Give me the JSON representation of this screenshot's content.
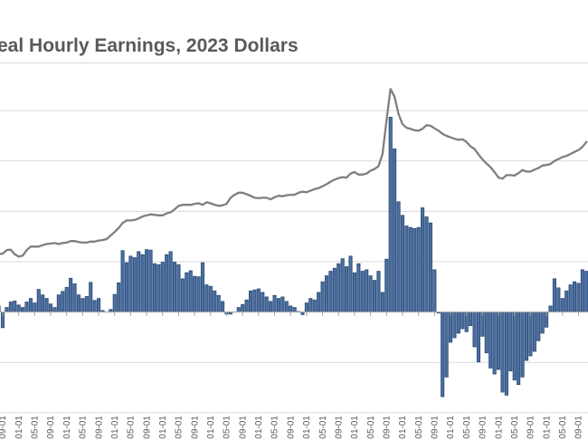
{
  "chart_data": {
    "type": "combo-line-bar",
    "title": "eal Hourly Earnings, 2023 Dollars",
    "legend": "none",
    "grid": "horizontal",
    "y_axis": {
      "tick_labels_visible": false,
      "gridline_values": [
        4,
        3,
        2,
        1,
        0,
        -1,
        -2
      ],
      "zero_baseline": true
    },
    "x_axis": {
      "tick_label_rotation_deg": -90,
      "months_per_tick": 4,
      "labels_cut_at_bottom": true,
      "tick_labels": [
        "09-01",
        "01-01",
        "05-01",
        "09-01",
        "01-01",
        "05-01",
        "09-01",
        "01-01",
        "05-01",
        "09-01",
        "01-01",
        "05-01",
        "09-01",
        "01-01",
        "05-01",
        "09-01",
        "01-01",
        "05-01",
        "09-01",
        "01-01",
        "05-01",
        "09-01",
        "01-01",
        "05-01",
        "09-01",
        "01-01",
        "05-01",
        "09-01",
        "01-01",
        "05-01",
        "09-01",
        "01-01",
        "05-01",
        "09-01",
        "01-01",
        "05-01",
        "09-01"
      ]
    },
    "series": [
      {
        "name": "real-hourly-earnings-line",
        "type": "line",
        "color": "#7F7F7F",
        "values": [
          1.15,
          1.16,
          1.23,
          1.24,
          1.15,
          1.1,
          1.12,
          1.23,
          1.3,
          1.3,
          1.3,
          1.33,
          1.35,
          1.36,
          1.37,
          1.35,
          1.37,
          1.38,
          1.41,
          1.41,
          1.39,
          1.38,
          1.38,
          1.4,
          1.4,
          1.42,
          1.43,
          1.45,
          1.52,
          1.59,
          1.67,
          1.77,
          1.82,
          1.82,
          1.83,
          1.86,
          1.9,
          1.92,
          1.94,
          1.93,
          1.92,
          1.92,
          1.96,
          1.98,
          2.04,
          2.11,
          2.13,
          2.13,
          2.13,
          2.15,
          2.16,
          2.13,
          2.18,
          2.16,
          2.13,
          2.11,
          2.12,
          2.15,
          2.27,
          2.33,
          2.37,
          2.37,
          2.34,
          2.31,
          2.27,
          2.26,
          2.27,
          2.27,
          2.24,
          2.28,
          2.31,
          2.3,
          2.32,
          2.33,
          2.33,
          2.37,
          2.39,
          2.38,
          2.41,
          2.44,
          2.46,
          2.5,
          2.54,
          2.59,
          2.63,
          2.66,
          2.68,
          2.67,
          2.75,
          2.78,
          2.73,
          2.73,
          2.75,
          2.81,
          2.84,
          2.9,
          3.14,
          3.81,
          4.43,
          4.28,
          3.93,
          3.73,
          3.66,
          3.64,
          3.61,
          3.6,
          3.64,
          3.71,
          3.7,
          3.65,
          3.6,
          3.54,
          3.5,
          3.47,
          3.44,
          3.42,
          3.43,
          3.38,
          3.29,
          3.24,
          3.13,
          3.03,
          2.95,
          2.88,
          2.78,
          2.67,
          2.65,
          2.72,
          2.72,
          2.71,
          2.76,
          2.82,
          2.79,
          2.79,
          2.83,
          2.86,
          2.91,
          2.92,
          2.94,
          3.0,
          3.04,
          3.08,
          3.1,
          3.14,
          3.18,
          3.22,
          3.28,
          3.38
        ]
      },
      {
        "name": "monthly-change-bars",
        "type": "bar",
        "color": "#4A6FA5",
        "border_color": "#2B4970",
        "values": [
          0.12,
          -0.31,
          0.09,
          0.2,
          0.22,
          0.14,
          0.09,
          0.2,
          0.27,
          0.18,
          0.45,
          0.34,
          0.27,
          0.16,
          0.09,
          0.34,
          0.41,
          0.49,
          0.67,
          0.56,
          0.34,
          0.27,
          0.31,
          0.59,
          0.23,
          0.27,
          0.03,
          0.0,
          0.05,
          0.35,
          0.58,
          1.22,
          0.98,
          1.11,
          1.08,
          1.2,
          1.14,
          1.24,
          1.23,
          0.96,
          0.94,
          0.99,
          1.14,
          1.2,
          0.99,
          0.94,
          0.66,
          0.78,
          0.82,
          0.71,
          0.7,
          0.98,
          0.54,
          0.51,
          0.42,
          0.33,
          0.21,
          -0.04,
          -0.04,
          0.0,
          0.09,
          0.15,
          0.24,
          0.42,
          0.44,
          0.46,
          0.39,
          0.3,
          0.21,
          0.33,
          0.27,
          0.3,
          0.21,
          0.12,
          0.09,
          0.01,
          -0.05,
          0.18,
          0.27,
          0.24,
          0.39,
          0.6,
          0.72,
          0.81,
          0.87,
          0.96,
          1.06,
          0.9,
          1.11,
          0.78,
          0.96,
          0.81,
          0.84,
          0.72,
          0.63,
          0.81,
          0.39,
          1.05,
          3.87,
          3.24,
          2.19,
          1.92,
          1.71,
          1.68,
          1.66,
          1.68,
          2.07,
          1.89,
          1.77,
          0.84,
          -0.02,
          -1.68,
          -1.29,
          -0.6,
          -0.51,
          -0.42,
          -0.33,
          -0.39,
          -0.27,
          -0.69,
          -0.99,
          -0.48,
          -0.81,
          -1.11,
          -1.23,
          -1.14,
          -1.59,
          -1.65,
          -1.17,
          -1.35,
          -1.44,
          -1.29,
          -0.96,
          -0.87,
          -0.78,
          -0.57,
          -0.42,
          -0.3,
          0.12,
          0.66,
          0.48,
          0.27,
          0.42,
          0.54,
          0.6,
          0.57,
          0.84,
          0.81
        ]
      }
    ]
  },
  "style": {
    "background": "#FFFFFF",
    "title_color": "#595959",
    "gridline_color": "#D9D9D9",
    "axis_color": "#A6A6A6",
    "tick_label_color": "#595959",
    "line_color": "#7F7F7F",
    "bar_fill": "#4A6FA5",
    "bar_stroke": "#2B4970"
  }
}
